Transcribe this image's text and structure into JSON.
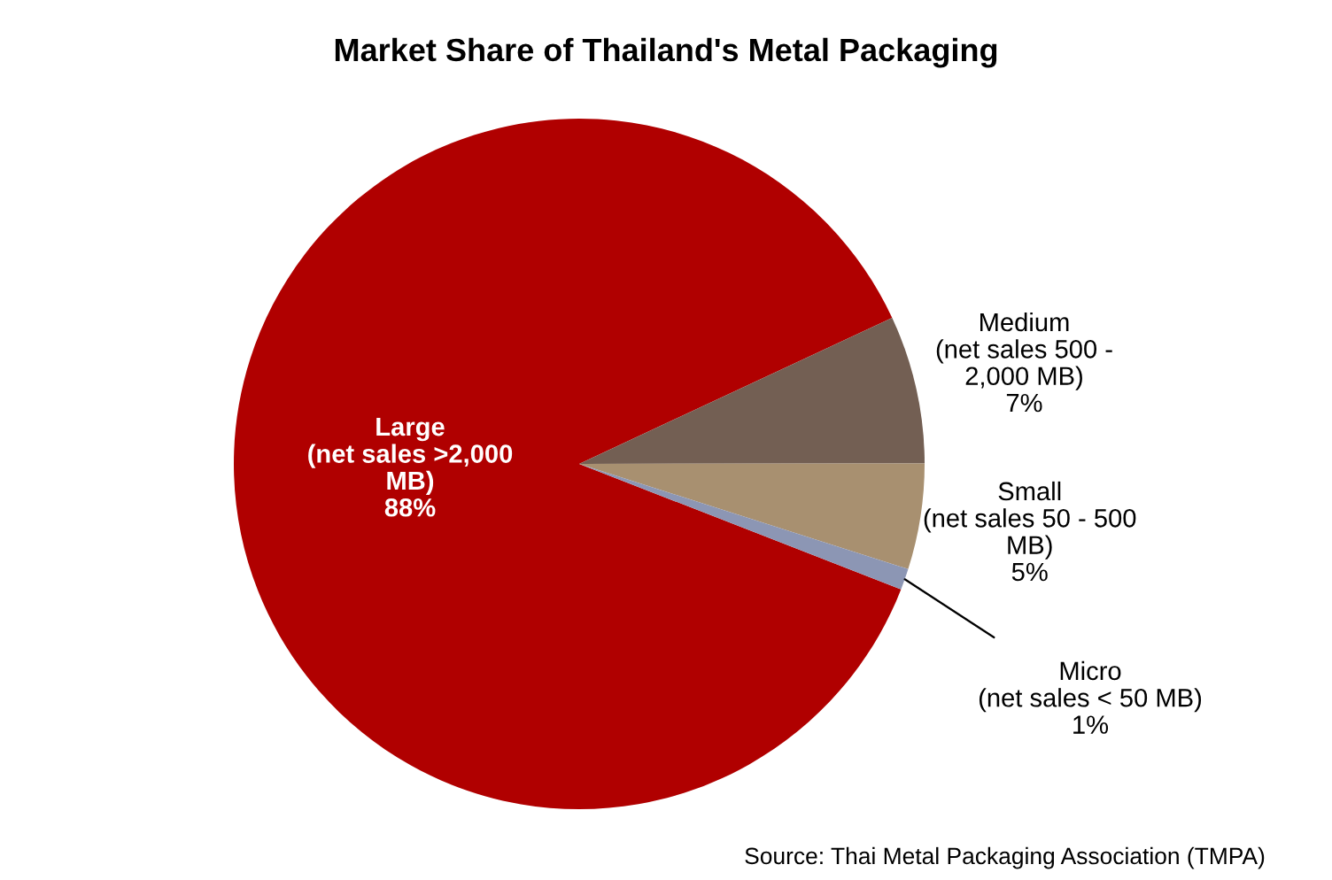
{
  "chart_data": {
    "type": "pie",
    "title": "Market Share of Thailand's Metal Packaging",
    "categories": [
      "Large\n(net sales >2,000\nMB)",
      "Medium\n(net sales 500 -\n2,000 MB)",
      "Small\n(net sales 50 - 500\nMB)",
      "Micro\n(net sales < 50 MB)"
    ],
    "values": [
      88,
      7,
      5,
      1
    ],
    "value_labels": [
      "88%",
      "7%",
      "5%",
      "1%"
    ],
    "colors": [
      "#b00000",
      "#735f53",
      "#a89070",
      "#8c96b4"
    ],
    "annotations": [
      "Source: Thai Metal Packaging Association (TMPA)"
    ]
  }
}
